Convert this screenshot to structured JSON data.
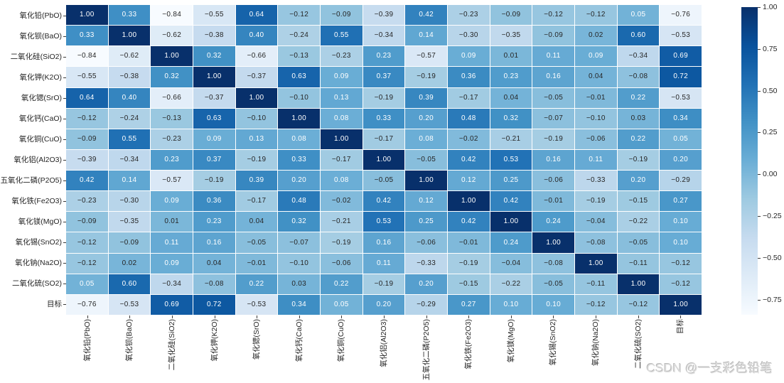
{
  "watermark": "CSDN @一支彩色铅笔",
  "chart_data": {
    "type": "heatmap",
    "title": "",
    "xlabel": "",
    "ylabel": "",
    "categories": [
      "氧化铅(PbO)",
      "氧化钡(BaO)",
      "二氧化硅(SiO2)",
      "氧化钾(K2O)",
      "氧化锶(SrO)",
      "氧化钙(CaO)",
      "氧化铜(CuO)",
      "氧化铝(Al2O3)",
      "五氧化二磷(P2O5)",
      "氧化铁(Fe2O3)",
      "氧化镁(MgO)",
      "氧化锡(SnO2)",
      "氧化钠(Na2O)",
      "二氧化硫(SO2)",
      "目标"
    ],
    "matrix": [
      [
        1.0,
        0.33,
        -0.84,
        -0.55,
        0.64,
        -0.12,
        -0.09,
        -0.39,
        0.42,
        -0.23,
        -0.09,
        -0.12,
        -0.12,
        0.05,
        -0.76
      ],
      [
        0.33,
        1.0,
        -0.62,
        -0.38,
        0.4,
        -0.24,
        0.55,
        -0.34,
        0.14,
        -0.3,
        -0.35,
        -0.09,
        0.02,
        0.6,
        -0.53
      ],
      [
        -0.84,
        -0.62,
        1.0,
        0.32,
        -0.66,
        -0.13,
        -0.23,
        0.23,
        -0.57,
        0.09,
        0.01,
        0.11,
        0.09,
        -0.34,
        0.69
      ],
      [
        -0.55,
        -0.38,
        0.32,
        1.0,
        -0.37,
        0.63,
        0.09,
        0.37,
        -0.19,
        0.36,
        0.23,
        0.16,
        0.04,
        -0.08,
        0.72
      ],
      [
        0.64,
        0.4,
        -0.66,
        -0.37,
        1.0,
        -0.1,
        0.13,
        -0.19,
        0.39,
        -0.17,
        0.04,
        -0.05,
        -0.01,
        0.22,
        -0.53
      ],
      [
        -0.12,
        -0.24,
        -0.13,
        0.63,
        -0.1,
        1.0,
        0.08,
        0.33,
        0.2,
        0.48,
        0.32,
        -0.07,
        -0.1,
        0.03,
        0.34
      ],
      [
        -0.09,
        0.55,
        -0.23,
        0.09,
        0.13,
        0.08,
        1.0,
        -0.17,
        0.08,
        -0.02,
        -0.21,
        -0.19,
        -0.06,
        0.22,
        0.05
      ],
      [
        -0.39,
        -0.34,
        0.23,
        0.37,
        -0.19,
        0.33,
        -0.17,
        1.0,
        -0.05,
        0.42,
        0.53,
        0.16,
        0.11,
        -0.19,
        0.2
      ],
      [
        0.42,
        0.14,
        -0.57,
        -0.19,
        0.39,
        0.2,
        0.08,
        -0.05,
        1.0,
        0.12,
        0.25,
        -0.06,
        -0.33,
        0.2,
        -0.29
      ],
      [
        -0.23,
        -0.3,
        0.09,
        0.36,
        -0.17,
        0.48,
        -0.02,
        0.42,
        0.12,
        1.0,
        0.42,
        -0.01,
        -0.19,
        -0.15,
        0.27
      ],
      [
        -0.09,
        -0.35,
        0.01,
        0.23,
        0.04,
        0.32,
        -0.21,
        0.53,
        0.25,
        0.42,
        1.0,
        0.24,
        -0.04,
        -0.22,
        0.1
      ],
      [
        -0.12,
        -0.09,
        0.11,
        0.16,
        -0.05,
        -0.07,
        -0.19,
        0.16,
        -0.06,
        -0.01,
        0.24,
        1.0,
        -0.08,
        -0.05,
        0.1
      ],
      [
        -0.12,
        0.02,
        0.09,
        0.04,
        -0.01,
        -0.1,
        -0.06,
        0.11,
        -0.33,
        -0.19,
        -0.04,
        -0.08,
        1.0,
        -0.11,
        -0.12
      ],
      [
        0.05,
        0.6,
        -0.34,
        -0.08,
        0.22,
        0.03,
        0.22,
        -0.19,
        0.2,
        -0.15,
        -0.22,
        -0.05,
        -0.11,
        1.0,
        -0.12
      ],
      [
        -0.76,
        -0.53,
        0.69,
        0.72,
        -0.53,
        0.34,
        0.05,
        0.2,
        -0.29,
        0.27,
        0.1,
        0.1,
        -0.12,
        -0.12,
        1.0
      ]
    ],
    "vmin": -0.84,
    "vmax": 1.0,
    "colormap": {
      "name": "Blues",
      "stops": [
        "#f7fbff",
        "#deebf7",
        "#c6dbef",
        "#9ecae1",
        "#6baed6",
        "#4292c6",
        "#2171b5",
        "#08519c",
        "#08306b"
      ]
    },
    "grid_line_color": "#ffffff",
    "annotation": {
      "decimals": 2,
      "dark_text": "#262626",
      "light_text": "#ffffff"
    },
    "colorbar": {
      "position": "right",
      "tick_values": [
        1.0,
        0.75,
        0.5,
        0.25,
        0.0,
        -0.25,
        -0.5,
        -0.75
      ],
      "tick_labels": [
        "1.00",
        "0.75",
        "0.50",
        "0.25",
        "0.00",
        "-0.25",
        "-0.50",
        "-0.75"
      ]
    },
    "legend_position": "right",
    "grid": "white-cell-separators"
  }
}
